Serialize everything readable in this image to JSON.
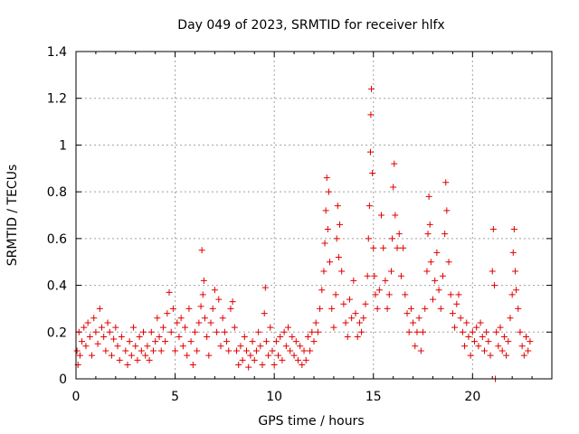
{
  "chart_data": {
    "type": "scatter",
    "title": "Day 049 of 2023, SRMTID for receiver hlfx",
    "xlabel": "GPS time / hours",
    "ylabel": "SRMTID / TECUs",
    "xlim": [
      0,
      24
    ],
    "ylim": [
      0,
      1.4
    ],
    "x_ticks": [
      0,
      5,
      10,
      15,
      20
    ],
    "x_tick_labels": [
      "0",
      "5",
      "10",
      "15",
      "20"
    ],
    "y_ticks": [
      0,
      0.2,
      0.4,
      0.6,
      0.8,
      1.0,
      1.2,
      1.4
    ],
    "y_tick_labels": [
      "0",
      "0.2",
      "0.4",
      "0.6",
      "0.8",
      "1",
      "1.2",
      "1.4"
    ],
    "grid": true,
    "marker": "plus",
    "color": "#e00000",
    "series": [
      {
        "name": "SRMTID",
        "points": [
          [
            0.05,
            0.12
          ],
          [
            0.1,
            0.06
          ],
          [
            0.15,
            0.2
          ],
          [
            0.2,
            0.1
          ],
          [
            0.3,
            0.16
          ],
          [
            0.4,
            0.22
          ],
          [
            0.5,
            0.14
          ],
          [
            0.6,
            0.24
          ],
          [
            0.7,
            0.18
          ],
          [
            0.8,
            0.1
          ],
          [
            0.9,
            0.26
          ],
          [
            1.0,
            0.2
          ],
          [
            1.1,
            0.15
          ],
          [
            1.2,
            0.3
          ],
          [
            1.3,
            0.22
          ],
          [
            1.4,
            0.18
          ],
          [
            1.5,
            0.12
          ],
          [
            1.6,
            0.24
          ],
          [
            1.7,
            0.2
          ],
          [
            1.8,
            0.1
          ],
          [
            1.9,
            0.17
          ],
          [
            2.0,
            0.22
          ],
          [
            2.1,
            0.14
          ],
          [
            2.2,
            0.08
          ],
          [
            2.3,
            0.18
          ],
          [
            2.5,
            0.12
          ],
          [
            2.6,
            0.06
          ],
          [
            2.7,
            0.16
          ],
          [
            2.8,
            0.1
          ],
          [
            2.9,
            0.22
          ],
          [
            3.0,
            0.14
          ],
          [
            3.1,
            0.08
          ],
          [
            3.2,
            0.18
          ],
          [
            3.3,
            0.12
          ],
          [
            3.4,
            0.2
          ],
          [
            3.5,
            0.1
          ],
          [
            3.6,
            0.14
          ],
          [
            3.7,
            0.08
          ],
          [
            3.8,
            0.2
          ],
          [
            3.9,
            0.12
          ],
          [
            4.0,
            0.16
          ],
          [
            4.1,
            0.26
          ],
          [
            4.2,
            0.18
          ],
          [
            4.3,
            0.12
          ],
          [
            4.4,
            0.22
          ],
          [
            4.5,
            0.16
          ],
          [
            4.6,
            0.28
          ],
          [
            4.7,
            0.37
          ],
          [
            4.8,
            0.2
          ],
          [
            4.9,
            0.3
          ],
          [
            5.0,
            0.12
          ],
          [
            5.1,
            0.24
          ],
          [
            5.2,
            0.18
          ],
          [
            5.3,
            0.26
          ],
          [
            5.4,
            0.14
          ],
          [
            5.5,
            0.22
          ],
          [
            5.6,
            0.1
          ],
          [
            5.7,
            0.3
          ],
          [
            5.8,
            0.16
          ],
          [
            5.9,
            0.06
          ],
          [
            6.0,
            0.2
          ],
          [
            6.1,
            0.12
          ],
          [
            6.2,
            0.24
          ],
          [
            6.3,
            0.31
          ],
          [
            6.35,
            0.55
          ],
          [
            6.4,
            0.36
          ],
          [
            6.45,
            0.42
          ],
          [
            6.5,
            0.26
          ],
          [
            6.6,
            0.18
          ],
          [
            6.7,
            0.1
          ],
          [
            6.8,
            0.24
          ],
          [
            6.9,
            0.3
          ],
          [
            7.0,
            0.38
          ],
          [
            7.1,
            0.2
          ],
          [
            7.2,
            0.34
          ],
          [
            7.3,
            0.14
          ],
          [
            7.4,
            0.26
          ],
          [
            7.5,
            0.2
          ],
          [
            7.6,
            0.16
          ],
          [
            7.7,
            0.12
          ],
          [
            7.8,
            0.3
          ],
          [
            7.9,
            0.33
          ],
          [
            8.0,
            0.22
          ],
          [
            8.1,
            0.12
          ],
          [
            8.2,
            0.06
          ],
          [
            8.3,
            0.14
          ],
          [
            8.4,
            0.08
          ],
          [
            8.5,
            0.18
          ],
          [
            8.6,
            0.12
          ],
          [
            8.7,
            0.05
          ],
          [
            8.8,
            0.1
          ],
          [
            8.9,
            0.16
          ],
          [
            9.0,
            0.08
          ],
          [
            9.1,
            0.12
          ],
          [
            9.2,
            0.2
          ],
          [
            9.3,
            0.14
          ],
          [
            9.4,
            0.06
          ],
          [
            9.5,
            0.28
          ],
          [
            9.55,
            0.39
          ],
          [
            9.6,
            0.16
          ],
          [
            9.7,
            0.1
          ],
          [
            9.8,
            0.22
          ],
          [
            9.9,
            0.12
          ],
          [
            10.0,
            0.06
          ],
          [
            10.1,
            0.16
          ],
          [
            10.2,
            0.1
          ],
          [
            10.3,
            0.18
          ],
          [
            10.4,
            0.08
          ],
          [
            10.5,
            0.2
          ],
          [
            10.6,
            0.14
          ],
          [
            10.7,
            0.22
          ],
          [
            10.8,
            0.12
          ],
          [
            10.9,
            0.18
          ],
          [
            11.0,
            0.1
          ],
          [
            11.1,
            0.16
          ],
          [
            11.2,
            0.08
          ],
          [
            11.3,
            0.14
          ],
          [
            11.4,
            0.06
          ],
          [
            11.5,
            0.12
          ],
          [
            11.6,
            0.08
          ],
          [
            11.7,
            0.18
          ],
          [
            11.8,
            0.12
          ],
          [
            11.9,
            0.2
          ],
          [
            12.0,
            0.16
          ],
          [
            12.1,
            0.24
          ],
          [
            12.2,
            0.2
          ],
          [
            12.3,
            0.3
          ],
          [
            12.4,
            0.38
          ],
          [
            12.5,
            0.46
          ],
          [
            12.55,
            0.58
          ],
          [
            12.6,
            0.72
          ],
          [
            12.65,
            0.86
          ],
          [
            12.7,
            0.64
          ],
          [
            12.75,
            0.8
          ],
          [
            12.8,
            0.5
          ],
          [
            12.9,
            0.3
          ],
          [
            13.0,
            0.22
          ],
          [
            13.1,
            0.36
          ],
          [
            13.15,
            0.6
          ],
          [
            13.2,
            0.74
          ],
          [
            13.25,
            0.52
          ],
          [
            13.3,
            0.66
          ],
          [
            13.4,
            0.46
          ],
          [
            13.5,
            0.32
          ],
          [
            13.6,
            0.24
          ],
          [
            13.7,
            0.18
          ],
          [
            13.8,
            0.34
          ],
          [
            13.9,
            0.26
          ],
          [
            14.0,
            0.42
          ],
          [
            14.1,
            0.28
          ],
          [
            14.2,
            0.18
          ],
          [
            14.3,
            0.24
          ],
          [
            14.4,
            0.2
          ],
          [
            14.5,
            0.26
          ],
          [
            14.6,
            0.32
          ],
          [
            14.7,
            0.44
          ],
          [
            14.75,
            0.6
          ],
          [
            14.8,
            0.74
          ],
          [
            14.85,
            0.97
          ],
          [
            14.87,
            1.13
          ],
          [
            14.9,
            1.24
          ],
          [
            14.95,
            0.88
          ],
          [
            15.0,
            0.56
          ],
          [
            15.05,
            0.44
          ],
          [
            15.1,
            0.36
          ],
          [
            15.2,
            0.3
          ],
          [
            15.3,
            0.38
          ],
          [
            15.4,
            0.7
          ],
          [
            15.5,
            0.56
          ],
          [
            15.6,
            0.42
          ],
          [
            15.7,
            0.3
          ],
          [
            15.8,
            0.36
          ],
          [
            15.9,
            0.46
          ],
          [
            15.95,
            0.6
          ],
          [
            16.0,
            0.82
          ],
          [
            16.05,
            0.92
          ],
          [
            16.1,
            0.7
          ],
          [
            16.2,
            0.56
          ],
          [
            16.3,
            0.62
          ],
          [
            16.4,
            0.44
          ],
          [
            16.5,
            0.56
          ],
          [
            16.6,
            0.36
          ],
          [
            16.7,
            0.28
          ],
          [
            16.8,
            0.2
          ],
          [
            16.9,
            0.3
          ],
          [
            17.0,
            0.24
          ],
          [
            17.1,
            0.14
          ],
          [
            17.2,
            0.2
          ],
          [
            17.3,
            0.26
          ],
          [
            17.4,
            0.12
          ],
          [
            17.5,
            0.2
          ],
          [
            17.6,
            0.3
          ],
          [
            17.7,
            0.46
          ],
          [
            17.75,
            0.62
          ],
          [
            17.8,
            0.78
          ],
          [
            17.85,
            0.66
          ],
          [
            17.9,
            0.5
          ],
          [
            18.0,
            0.34
          ],
          [
            18.1,
            0.42
          ],
          [
            18.2,
            0.54
          ],
          [
            18.3,
            0.38
          ],
          [
            18.4,
            0.3
          ],
          [
            18.5,
            0.44
          ],
          [
            18.6,
            0.62
          ],
          [
            18.65,
            0.84
          ],
          [
            18.7,
            0.72
          ],
          [
            18.8,
            0.5
          ],
          [
            18.9,
            0.36
          ],
          [
            19.0,
            0.28
          ],
          [
            19.1,
            0.22
          ],
          [
            19.2,
            0.32
          ],
          [
            19.3,
            0.36
          ],
          [
            19.4,
            0.26
          ],
          [
            19.5,
            0.2
          ],
          [
            19.6,
            0.14
          ],
          [
            19.7,
            0.24
          ],
          [
            19.8,
            0.18
          ],
          [
            19.9,
            0.1
          ],
          [
            20.0,
            0.2
          ],
          [
            20.1,
            0.16
          ],
          [
            20.2,
            0.22
          ],
          [
            20.3,
            0.14
          ],
          [
            20.4,
            0.24
          ],
          [
            20.5,
            0.18
          ],
          [
            20.6,
            0.12
          ],
          [
            20.7,
            0.2
          ],
          [
            20.8,
            0.16
          ],
          [
            20.9,
            0.1
          ],
          [
            21.0,
            0.46
          ],
          [
            21.05,
            0.64
          ],
          [
            21.1,
            0.4
          ],
          [
            21.15,
            0.0
          ],
          [
            21.2,
            0.2
          ],
          [
            21.3,
            0.14
          ],
          [
            21.4,
            0.22
          ],
          [
            21.5,
            0.12
          ],
          [
            21.6,
            0.18
          ],
          [
            21.7,
            0.1
          ],
          [
            21.8,
            0.16
          ],
          [
            21.9,
            0.26
          ],
          [
            22.0,
            0.36
          ],
          [
            22.05,
            0.54
          ],
          [
            22.1,
            0.64
          ],
          [
            22.15,
            0.46
          ],
          [
            22.2,
            0.38
          ],
          [
            22.3,
            0.3
          ],
          [
            22.4,
            0.2
          ],
          [
            22.5,
            0.14
          ],
          [
            22.6,
            0.1
          ],
          [
            22.7,
            0.18
          ],
          [
            22.8,
            0.12
          ],
          [
            22.9,
            0.16
          ]
        ]
      }
    ]
  }
}
